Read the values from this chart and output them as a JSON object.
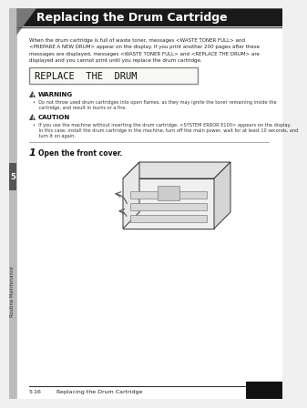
{
  "title": "Replacing the Drum Cartridge",
  "bg_color": "#f0f0f0",
  "page_bg": "#ffffff",
  "header_bg": "#1a1a1a",
  "header_text_color": "#ffffff",
  "header_title": "Replacing the Drum Cartridge",
  "body_text1": "When the drum cartridge is full of waste toner, messages <WASTE TONER FULL> and",
  "body_text2": "<PREPARE A NEW DRUM> appear on the display. If you print another 200 pages after these",
  "body_text3": "messages are displayed, messages <WASTE TONER FULL> and <REPLACE THE DRUM> are",
  "body_text4": "displayed and you cannot print until you replace the drum cartridge.",
  "lcd_text": "REPLACE  THE  DRUM",
  "warning_title": "WARNING",
  "warning_text1": "•  Do not throw used drum cartridges into open flames, as they may ignite the toner remaining inside the",
  "warning_text2": "    cartridge, and result in burns or a fire.",
  "caution_title": "CAUTION",
  "caution_text1": "•  If you use the machine without inserting the drum cartridge, <SYSTEM ERROR E100> appears on the display.",
  "caution_text2": "    In this case, install the drum cartridge in the machine, turn off the main power, wait for at least 10 seconds, and",
  "caution_text3": "    turn it on again.",
  "step_number": "1",
  "step_text": "Open the front cover.",
  "footer_page": "5-16",
  "footer_text": "Replacing the Drum Cartridge",
  "sidebar_number": "5",
  "sidebar_label": "Routine Maintenance",
  "tab_color": "#555555",
  "triangle_color": "#777777",
  "sidebar_bg": "#bbbbbb",
  "icon_color": "#444444",
  "lcd_bg": "#f8f8f5",
  "lcd_border": "#888888"
}
